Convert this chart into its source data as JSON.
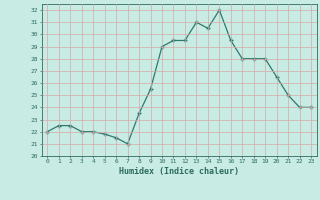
{
  "x": [
    0,
    1,
    2,
    3,
    4,
    5,
    6,
    7,
    8,
    9,
    10,
    11,
    12,
    13,
    14,
    15,
    16,
    17,
    18,
    19,
    20,
    21,
    22,
    23
  ],
  "y": [
    22,
    22.5,
    22.5,
    22,
    22,
    21.8,
    21.5,
    21,
    23.5,
    25.5,
    29,
    29.5,
    29.5,
    31,
    30.5,
    32,
    29.5,
    28,
    28,
    28,
    26.5,
    25,
    24,
    24
  ],
  "ylim": [
    20,
    32.5
  ],
  "xlim": [
    -0.5,
    23.5
  ],
  "yticks": [
    20,
    21,
    22,
    23,
    24,
    25,
    26,
    27,
    28,
    29,
    30,
    31,
    32
  ],
  "xticks": [
    0,
    1,
    2,
    3,
    4,
    5,
    6,
    7,
    8,
    9,
    10,
    11,
    12,
    13,
    14,
    15,
    16,
    17,
    18,
    19,
    20,
    21,
    22,
    23
  ],
  "xlabel": "Humidex (Indice chaleur)",
  "line_color": "#2d7a6e",
  "marker_color": "#2d7a6e",
  "bg_color": "#c8ebe3",
  "grid_color": "#b0d4cc",
  "tick_label_color": "#2d6b60",
  "axis_color": "#2d6b60",
  "xlabel_color": "#2d6b60"
}
